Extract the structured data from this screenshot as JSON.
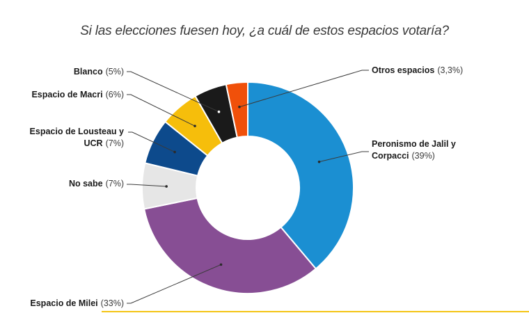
{
  "title": "Si las elecciones fuesen hoy, ¿a cuál de estos espacios votaría?",
  "chart_data": {
    "type": "pie",
    "title": "Si las elecciones fuesen hoy, ¿a cuál de estos espacios votaría?",
    "slices": [
      {
        "name": "Peronismo de Jalil y Corpacci",
        "label_lines": [
          "Peronismo de Jalil y",
          "Corpacci"
        ],
        "value": 39,
        "value_label": "(39%)",
        "color": "#1b8fd2"
      },
      {
        "name": "Espacio de Milei",
        "label_lines": [
          "Espacio de Milei"
        ],
        "value": 33,
        "value_label": "(33%)",
        "color": "#874e94"
      },
      {
        "name": "No sabe",
        "label_lines": [
          "No sabe"
        ],
        "value": 7,
        "value_label": "(7%)",
        "color": "#e6e6e6"
      },
      {
        "name": "Espacio de Lousteau y UCR",
        "label_lines": [
          "Espacio de Lousteau y",
          "UCR"
        ],
        "value": 7,
        "value_label": "(7%)",
        "color": "#0d4a8c"
      },
      {
        "name": "Espacio de Macri",
        "label_lines": [
          "Espacio de Macri"
        ],
        "value": 6,
        "value_label": "(6%)",
        "color": "#f6be0b"
      },
      {
        "name": "Blanco",
        "label_lines": [
          "Blanco"
        ],
        "value": 5,
        "value_label": "(5%)",
        "color": "#1a1a1a"
      },
      {
        "name": "Otros espacios",
        "label_lines": [
          "Otros espacios"
        ],
        "value": 3.3,
        "value_label": "(3,3%)",
        "color": "#f0500a"
      }
    ]
  }
}
